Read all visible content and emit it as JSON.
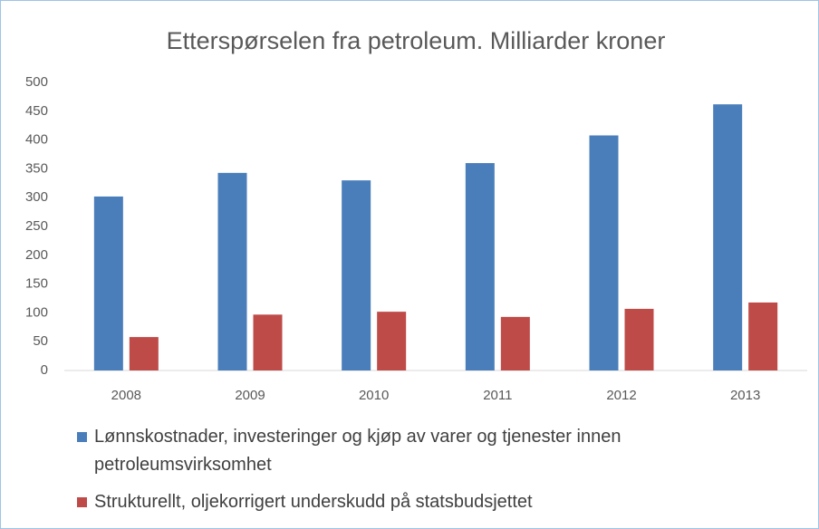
{
  "chart_data": {
    "type": "bar",
    "title": "Etterspørselen fra petroleum. Milliarder kroner",
    "categories": [
      "2008",
      "2009",
      "2010",
      "2011",
      "2012",
      "2013"
    ],
    "series": [
      {
        "name": "Lønnskostnader, investeringer og kjøp av varer og tjenester innen petroleumsvirksomhet",
        "color": "#4a7ebb",
        "values": [
          302,
          343,
          330,
          360,
          408,
          462
        ]
      },
      {
        "name": "Strukturellt, oljekorrigert underskudd på statsbudsjettet",
        "color": "#be4b48",
        "values": [
          58,
          97,
          102,
          93,
          107,
          118
        ]
      }
    ],
    "ylim": [
      0,
      500
    ],
    "yticks": [
      0,
      50,
      100,
      150,
      200,
      250,
      300,
      350,
      400,
      450,
      500
    ],
    "grid": false,
    "legend": "bottom"
  }
}
